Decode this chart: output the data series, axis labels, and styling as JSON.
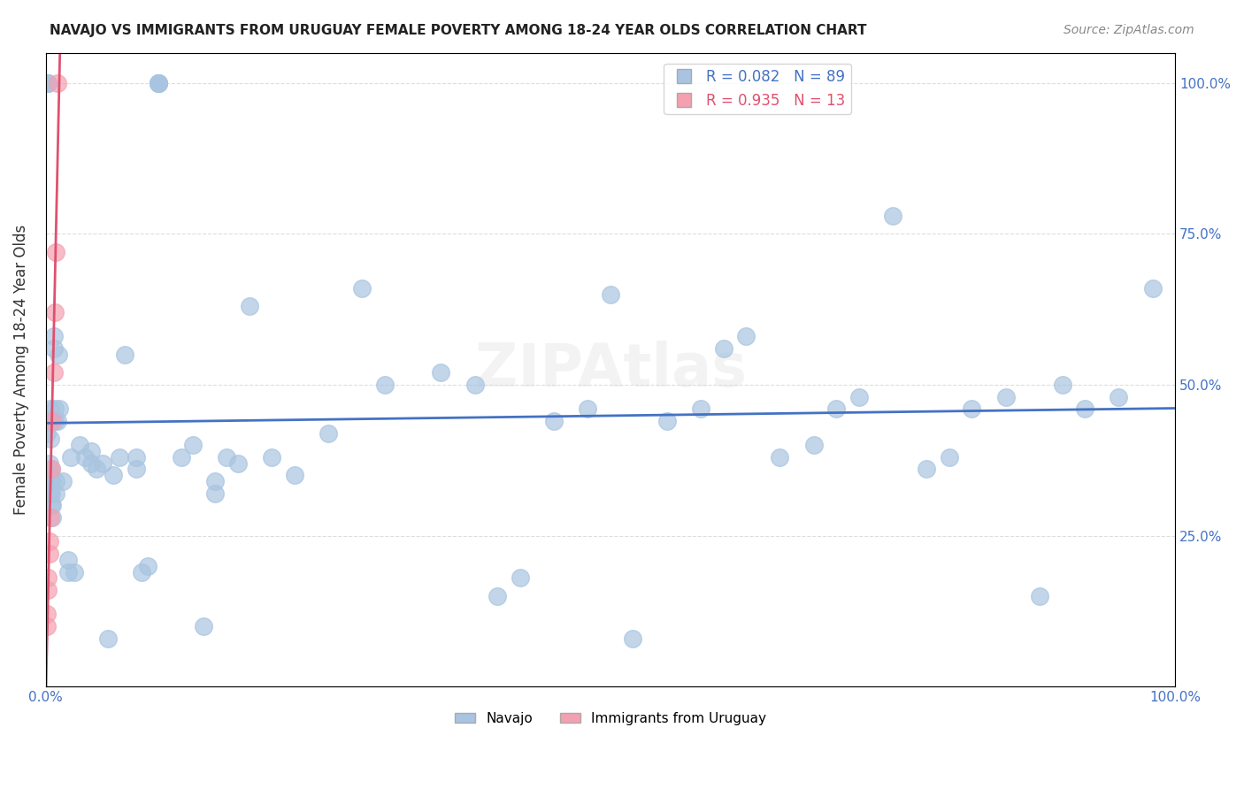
{
  "title": "NAVAJO VS IMMIGRANTS FROM URUGUAY FEMALE POVERTY AMONG 18-24 YEAR OLDS CORRELATION CHART",
  "source": "Source: ZipAtlas.com",
  "xlabel": "",
  "ylabel": "Female Poverty Among 18-24 Year Olds",
  "navajo_R": 0.082,
  "navajo_N": 89,
  "uruguay_R": 0.935,
  "uruguay_N": 13,
  "navajo_color": "#a8c4e0",
  "uruguay_color": "#f4a0b0",
  "navajo_line_color": "#4472c4",
  "uruguay_line_color": "#e05070",
  "legend_box_navajo": "#a8c4e0",
  "legend_box_uruguay": "#f4a0b0",
  "navajo_x": [
    0.001,
    0.001,
    0.002,
    0.002,
    0.002,
    0.003,
    0.003,
    0.003,
    0.003,
    0.004,
    0.004,
    0.004,
    0.005,
    0.005,
    0.005,
    0.005,
    0.006,
    0.006,
    0.007,
    0.007,
    0.008,
    0.008,
    0.009,
    0.009,
    0.01,
    0.011,
    0.012,
    0.015,
    0.02,
    0.02,
    0.022,
    0.025,
    0.03,
    0.035,
    0.04,
    0.04,
    0.045,
    0.05,
    0.055,
    0.06,
    0.065,
    0.07,
    0.08,
    0.08,
    0.085,
    0.09,
    0.1,
    0.1,
    0.1,
    0.1,
    0.12,
    0.13,
    0.14,
    0.15,
    0.15,
    0.16,
    0.17,
    0.18,
    0.2,
    0.22,
    0.25,
    0.28,
    0.3,
    0.35,
    0.38,
    0.4,
    0.42,
    0.45,
    0.48,
    0.5,
    0.52,
    0.55,
    0.58,
    0.6,
    0.62,
    0.65,
    0.68,
    0.7,
    0.72,
    0.75,
    0.78,
    0.8,
    0.82,
    0.85,
    0.88,
    0.9,
    0.92,
    0.95,
    0.98
  ],
  "navajo_y": [
    0.44,
    0.42,
    1.0,
    1.0,
    1.0,
    0.32,
    0.35,
    0.37,
    0.44,
    0.46,
    0.35,
    0.41,
    0.3,
    0.32,
    0.34,
    0.36,
    0.28,
    0.3,
    0.56,
    0.58,
    0.44,
    0.46,
    0.32,
    0.34,
    0.44,
    0.55,
    0.46,
    0.34,
    0.19,
    0.21,
    0.38,
    0.19,
    0.4,
    0.38,
    0.37,
    0.39,
    0.36,
    0.37,
    0.08,
    0.35,
    0.38,
    0.55,
    0.36,
    0.38,
    0.19,
    0.2,
    1.0,
    1.0,
    1.0,
    1.0,
    0.38,
    0.4,
    0.1,
    0.32,
    0.34,
    0.38,
    0.37,
    0.63,
    0.38,
    0.35,
    0.42,
    0.66,
    0.5,
    0.52,
    0.5,
    0.15,
    0.18,
    0.44,
    0.46,
    0.65,
    0.08,
    0.44,
    0.46,
    0.56,
    0.58,
    0.38,
    0.4,
    0.46,
    0.48,
    0.78,
    0.36,
    0.38,
    0.46,
    0.48,
    0.15,
    0.5,
    0.46,
    0.48,
    0.66
  ],
  "uruguay_x": [
    0.001,
    0.001,
    0.002,
    0.002,
    0.003,
    0.003,
    0.004,
    0.005,
    0.006,
    0.007,
    0.008,
    0.009,
    0.01
  ],
  "uruguay_y": [
    0.1,
    0.12,
    0.16,
    0.18,
    0.22,
    0.24,
    0.28,
    0.36,
    0.44,
    0.52,
    0.62,
    0.72,
    1.0
  ],
  "xlim": [
    0.0,
    1.0
  ],
  "ylim": [
    0.0,
    1.0
  ],
  "xtick_labels": [
    "0.0%",
    "100.0%"
  ],
  "ytick_labels": [
    "25.0%",
    "50.0%",
    "75.0%",
    "100.0%"
  ],
  "ytick_values": [
    0.25,
    0.5,
    0.75,
    1.0
  ],
  "background_color": "#ffffff",
  "grid_color": "#dddddd"
}
